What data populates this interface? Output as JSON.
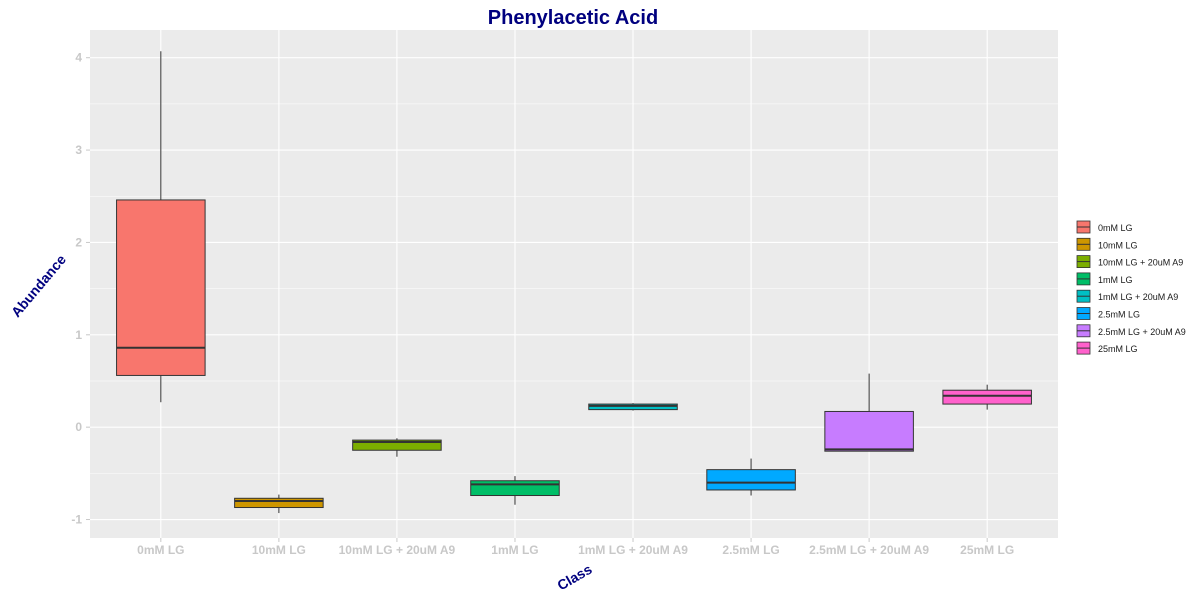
{
  "chart_data": {
    "type": "boxplot",
    "title": "Phenylacetic Acid",
    "xlabel": "Class",
    "ylabel": "Abundance",
    "ylim": [
      -1.2,
      4.3
    ],
    "yticks": [
      -1,
      0,
      1,
      2,
      3,
      4
    ],
    "grid": true,
    "legend_position": "right",
    "categories": [
      "0mM LG",
      "10mM LG",
      "10mM LG + 20uM A9",
      "1mM LG",
      "1mM LG + 20uM A9",
      "2.5mM LG",
      "2.5mM LG + 20uM A9",
      "25mM LG"
    ],
    "series": [
      {
        "name": "0mM LG",
        "color": "#F8766D",
        "min": 0.27,
        "q1": 0.56,
        "median": 0.86,
        "q3": 2.46,
        "max": 4.07
      },
      {
        "name": "10mM LG",
        "color": "#CD9600",
        "min": -0.93,
        "q1": -0.87,
        "median": -0.8,
        "q3": -0.77,
        "max": -0.73
      },
      {
        "name": "10mM LG + 20uM A9",
        "color": "#7CAE00",
        "min": -0.32,
        "q1": -0.25,
        "median": -0.16,
        "q3": -0.14,
        "max": -0.12
      },
      {
        "name": "1mM LG",
        "color": "#00BE67",
        "min": -0.84,
        "q1": -0.74,
        "median": -0.62,
        "q3": -0.58,
        "max": -0.53
      },
      {
        "name": "1mM LG + 20uM A9",
        "color": "#00BFC4",
        "min": 0.18,
        "q1": 0.19,
        "median": 0.23,
        "q3": 0.25,
        "max": 0.26
      },
      {
        "name": "2.5mM LG",
        "color": "#00A9FF",
        "min": -0.74,
        "q1": -0.68,
        "median": -0.6,
        "q3": -0.46,
        "max": -0.34
      },
      {
        "name": "2.5mM LG + 20uM A9",
        "color": "#C77CFF",
        "min": -0.26,
        "q1": -0.26,
        "median": -0.24,
        "q3": 0.17,
        "max": 0.58
      },
      {
        "name": "25mM LG",
        "color": "#FF61CC",
        "min": 0.19,
        "q1": 0.25,
        "median": 0.34,
        "q3": 0.4,
        "max": 0.46
      }
    ]
  }
}
